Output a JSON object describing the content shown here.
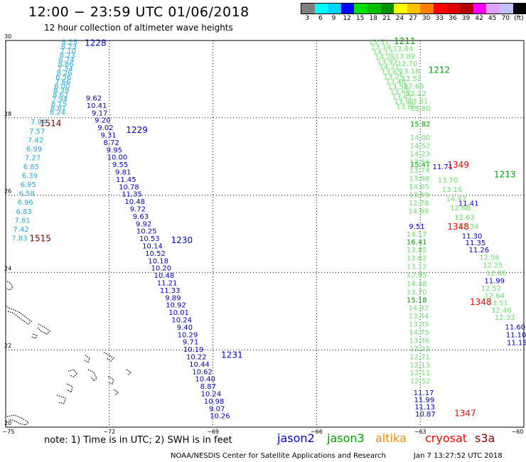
{
  "header": {
    "title": "12:00 − 23:59 UTC 01/06/2018",
    "subtitle": "12 hour collection of altimeter wave heights"
  },
  "legend": {
    "colors": [
      "#808080",
      "#00ffff",
      "#00d0ff",
      "#0000ff",
      "#00e000",
      "#00c000",
      "#009000",
      "#ffff00",
      "#ffc000",
      "#ff8000",
      "#ff0000",
      "#e00000",
      "#b00000",
      "#ff00ff",
      "#e0a0ff",
      "#c0c0ff",
      "#000000"
    ],
    "labels": [
      "3",
      "6",
      "9",
      "12",
      "15",
      "18",
      "21",
      "24",
      "27",
      "30",
      "33",
      "36",
      "39",
      "42",
      "45",
      "70",
      "(ft)"
    ]
  },
  "map": {
    "lat_ticks": [
      {
        "lat": 20,
        "label": "20"
      },
      {
        "lat": 22,
        "label": "22"
      },
      {
        "lat": 24,
        "label": "24"
      },
      {
        "lat": 26,
        "label": "26"
      },
      {
        "lat": 28,
        "label": "28"
      },
      {
        "lat": 30,
        "label": "30"
      }
    ],
    "lon_ticks": [
      {
        "lon": -75,
        "label": "−75"
      },
      {
        "lon": -72,
        "label": "−72"
      },
      {
        "lon": -69,
        "label": "−69"
      },
      {
        "lon": -66,
        "label": "−66"
      },
      {
        "lon": -63,
        "label": "−63"
      },
      {
        "lon": -60,
        "label": "−60"
      }
    ],
    "colors": {
      "jason2": "#0000c8",
      "jason3": "#00a000",
      "altika": "#ff8c00",
      "cryosat": "#ff0000",
      "s3a": "#800000",
      "cyan": "#2aa8e0",
      "lightgreen": "#6de06d"
    },
    "tracks": [
      {
        "sat": "cyan",
        "values": [
          "8.25",
          "8.23",
          "7.10",
          "8.23",
          "6.74",
          "8.86",
          "7.34",
          "8.26",
          "6.56",
          "7.66",
          "8.00",
          "8.39",
          "8.62",
          "7.94",
          "8.15",
          "8.81",
          "8.24"
        ],
        "start": {
          "lat": 29.97,
          "lon": -73.15
        },
        "end": {
          "lat": 28.15,
          "lon": -73.5
        }
      },
      {
        "sat": "cyan",
        "values": [
          "7.94",
          "7.57",
          "7.42",
          "6.99",
          "7.27",
          "6.85",
          "6.39",
          "6.95",
          "6.58",
          "6.96",
          "6.83",
          "7.81",
          "7.42",
          "7.83"
        ],
        "start": {
          "lat": 27.9,
          "lon": -74.05
        },
        "end": {
          "lat": 24.9,
          "lon": -74.6
        }
      },
      {
        "sat": "jason2",
        "values": [
          "9.62",
          "10.41",
          "9.17",
          "9.20",
          "9.02",
          "9.31",
          "8.72",
          "9.95",
          "10.00",
          "9.55",
          "9.81",
          "11.45",
          "10.78",
          "11.35",
          "10.48",
          "9.72",
          "9.63",
          "9.92",
          "10.25",
          "10.53",
          "10.14",
          "10.52",
          "10.18",
          "10.20",
          "10.48",
          "11.21",
          "11.33",
          "9.89",
          "10.92",
          "10.01",
          "10.24",
          "9.40",
          "10.29",
          "9.71",
          "10.19",
          "10.22",
          "10.44",
          "10.62",
          "10.40",
          "8.87",
          "10.24",
          "10.98",
          "9.07",
          "10.26"
        ],
        "start": {
          "lat": 28.52,
          "lon": -72.45
        },
        "end": {
          "lat": 20.3,
          "lon": -68.8
        }
      },
      {
        "sat": "lightgreen",
        "values": [
          "13.51",
          "13.14",
          "14.13",
          "14.26",
          "13.92",
          "14.21",
          "13.65",
          "13.25",
          "13.40",
          "13.58",
          "13.60",
          "13.47",
          "13.91",
          "13.86"
        ],
        "start": {
          "lat": 29.97,
          "lon": -64.2
        },
        "end": {
          "lat": 28.3,
          "lon": -63.4
        }
      },
      {
        "sat": "lightgreen",
        "values": [
          "13.84",
          "13.89",
          "12.70",
          "13.18",
          "12.52",
          "12.66",
          "13.22",
          "13.61",
          "13.80"
        ],
        "start": {
          "lat": 29.8,
          "lon": -63.5
        },
        "end": {
          "lat": 28.25,
          "lon": -63.0
        }
      },
      {
        "sat": "jason3",
        "values": [
          "15.82",
          "15.47"
        ],
        "start": {
          "lat": 27.85,
          "lon": -63.0
        },
        "end": {
          "lat": 26.8,
          "lon": -63.0
        }
      },
      {
        "sat": "lightgreen",
        "values": [
          "14.00",
          "14.52",
          "14.23",
          "13.56",
          "13.74",
          "13.98",
          "14.05",
          "13.59",
          "12.78",
          "14.99"
        ],
        "start": {
          "lat": 27.5,
          "lon": -63.0
        },
        "end": {
          "lat": 25.6,
          "lon": -63.05
        }
      },
      {
        "sat": "lightgreen",
        "values": [
          "13.70",
          "13.16",
          "14.47",
          "12.68",
          "12.63",
          "12.34"
        ],
        "start": {
          "lat": 26.4,
          "lon": -62.2
        },
        "end": {
          "lat": 25.2,
          "lon": -61.6
        }
      },
      {
        "sat": "jason2",
        "values": [
          "11.71",
          "11.41"
        ],
        "start": {
          "lat": 26.75,
          "lon": -62.35
        },
        "end": {
          "lat": 25.8,
          "lon": -61.6
        }
      },
      {
        "sat": "jason2",
        "values": [
          "9.51"
        ],
        "start": {
          "lat": 25.2,
          "lon": -63.1
        },
        "end": {
          "lat": 25.2,
          "lon": -63.1
        }
      },
      {
        "sat": "lightgreen",
        "values": [
          "14.17"
        ],
        "start": {
          "lat": 25.0,
          "lon": -63.1
        },
        "end": {
          "lat": 25.0,
          "lon": -63.1
        }
      },
      {
        "sat": "jason3",
        "values": [
          "16.41"
        ],
        "start": {
          "lat": 24.8,
          "lon": -63.1
        },
        "end": {
          "lat": 24.8,
          "lon": -63.1
        }
      },
      {
        "sat": "lightgreen",
        "values": [
          "13.85",
          "13.62",
          "13.12",
          "12.95",
          "14.48",
          "13.70"
        ],
        "start": {
          "lat": 24.6,
          "lon": -63.1
        },
        "end": {
          "lat": 23.5,
          "lon": -63.1
        }
      },
      {
        "sat": "jason3",
        "values": [
          "15.18"
        ],
        "start": {
          "lat": 23.3,
          "lon": -63.1
        },
        "end": {
          "lat": 23.3,
          "lon": -63.1
        }
      },
      {
        "sat": "lightgreen",
        "values": [
          "14.32",
          "13.44",
          "13.35",
          "14.75",
          "13.36",
          "13.23",
          "12.71",
          "12.13",
          "12.11",
          "12.52"
        ],
        "start": {
          "lat": 23.1,
          "lon": -63.05
        },
        "end": {
          "lat": 21.2,
          "lon": -63.0
        }
      },
      {
        "sat": "jason2",
        "values": [
          "11.17",
          "11.99",
          "11.13",
          "10.87"
        ],
        "start": {
          "lat": 20.9,
          "lon": -62.9
        },
        "end": {
          "lat": 20.35,
          "lon": -62.85
        }
      },
      {
        "sat": "jason2",
        "values": [
          "11.30",
          "11.35",
          "11.26"
        ],
        "start": {
          "lat": 24.95,
          "lon": -61.5
        },
        "end": {
          "lat": 24.6,
          "lon": -61.3
        }
      },
      {
        "sat": "lightgreen",
        "values": [
          "12.56",
          "12.25",
          "12.86"
        ],
        "start": {
          "lat": 24.4,
          "lon": -61.0
        },
        "end": {
          "lat": 24.0,
          "lon": -60.8
        }
      },
      {
        "sat": "jason2",
        "values": [
          "11.99"
        ],
        "start": {
          "lat": 23.8,
          "lon": -60.85
        },
        "end": {
          "lat": 23.8,
          "lon": -60.85
        }
      },
      {
        "sat": "lightgreen",
        "values": [
          "12.52",
          "12.64",
          "13.51",
          "12.46",
          "12.33"
        ],
        "start": {
          "lat": 23.6,
          "lon": -60.95
        },
        "end": {
          "lat": 22.85,
          "lon": -60.55
        }
      },
      {
        "sat": "jason2",
        "values": [
          "11.60",
          "11.10",
          "11.15"
        ],
        "start": {
          "lat": 22.6,
          "lon": -60.25
        },
        "end": {
          "lat": 22.2,
          "lon": -60.2
        }
      }
    ],
    "pass_labels": [
      {
        "text": "1228",
        "sat": "jason2",
        "lat": 29.95,
        "lon": -72.4
      },
      {
        "text": "1514",
        "sat": "s3a",
        "lat": 27.88,
        "lon": -73.7
      },
      {
        "text": "1229",
        "sat": "jason2",
        "lat": 27.7,
        "lon": -71.2
      },
      {
        "text": "1515",
        "sat": "s3a",
        "lat": 24.9,
        "lon": -74.0
      },
      {
        "text": "1230",
        "sat": "jason2",
        "lat": 24.85,
        "lon": -69.9
      },
      {
        "text": "1231",
        "sat": "jason2",
        "lat": 21.88,
        "lon": -68.45
      },
      {
        "text": "1211",
        "sat": "jason3",
        "lat": 30.0,
        "lon": -63.45
      },
      {
        "text": "1212",
        "sat": "jason3",
        "lat": 29.26,
        "lon": -62.45
      },
      {
        "text": "1349",
        "sat": "cryosat",
        "lat": 26.8,
        "lon": -61.9
      },
      {
        "text": "1213",
        "sat": "jason3",
        "lat": 26.55,
        "lon": -60.55
      },
      {
        "text": "1348",
        "sat": "cryosat",
        "lat": 25.2,
        "lon": -61.9
      },
      {
        "text": "1348",
        "sat": "cryosat",
        "lat": 23.25,
        "lon": -61.25
      },
      {
        "text": "1347",
        "sat": "cryosat",
        "lat": 20.38,
        "lon": -61.7
      }
    ]
  },
  "footer": {
    "note": "note:  1) Time is in UTC;  2) SWH is in feet",
    "satellites": [
      {
        "name": "jason2",
        "color": "#0000c8"
      },
      {
        "name": "jason3",
        "color": "#00a000"
      },
      {
        "name": "altika",
        "color": "#ff8c00"
      },
      {
        "name": "cryosat",
        "color": "#ff0000"
      },
      {
        "name": "s3a",
        "color": "#800000"
      }
    ],
    "credit": "NOAA/NESDIS Center for Satellite Applications and Research",
    "timestamp": "Jan  7 13:27:52 UTC 2018"
  }
}
